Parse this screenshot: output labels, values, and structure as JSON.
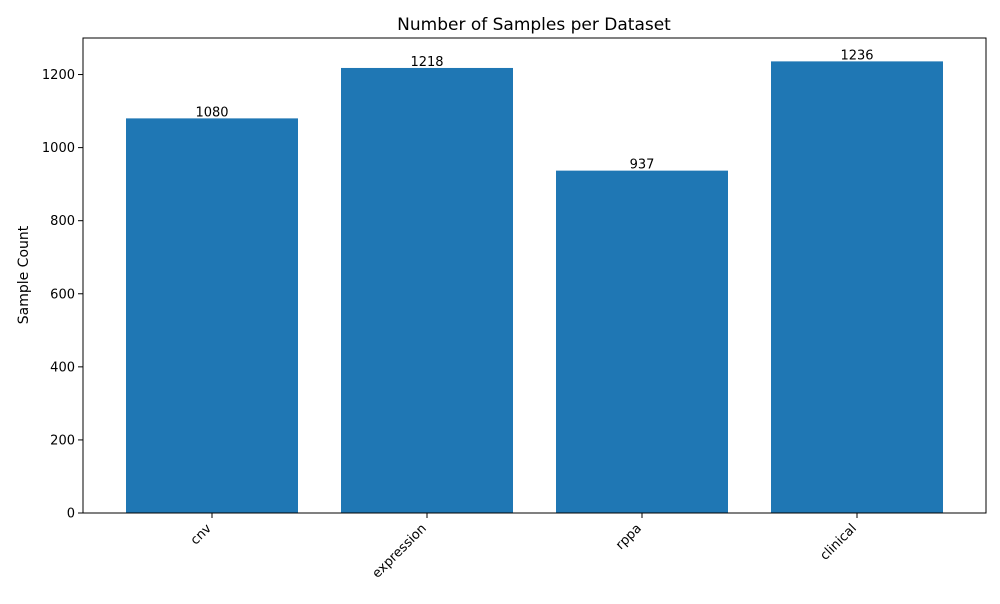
{
  "chart_data": {
    "type": "bar",
    "title": "Number of Samples per Dataset",
    "xlabel": "",
    "ylabel": "Sample Count",
    "categories": [
      "cnv",
      "expression",
      "rppa",
      "clinical"
    ],
    "values": [
      1080,
      1218,
      937,
      1236
    ],
    "data_labels": [
      "1080",
      "1218",
      "937",
      "1236"
    ],
    "ylim": [
      0,
      1300
    ],
    "yticks": [
      0,
      200,
      400,
      600,
      800,
      1000,
      1200
    ],
    "ytick_labels": [
      "0",
      "200",
      "400",
      "600",
      "800",
      "1000",
      "1200"
    ],
    "xtick_rotation_deg": 45,
    "grid": false,
    "legend": "none",
    "bar_color": "#1f77b4"
  }
}
